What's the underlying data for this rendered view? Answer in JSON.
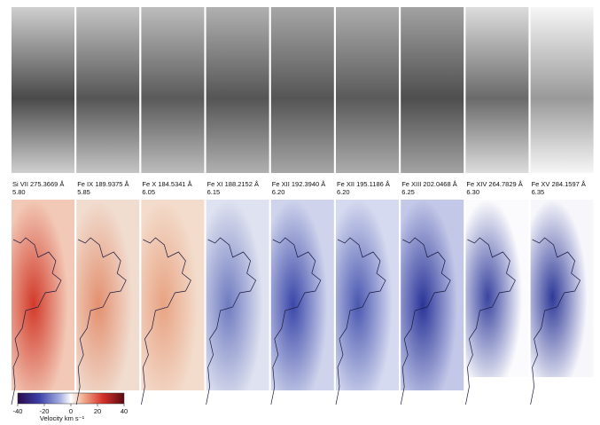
{
  "panels": [
    {
      "line": "Si VII 275.3669 Å",
      "logt": "5.80"
    },
    {
      "line": "Fe IX 189.9375 Å",
      "logt": "5.85"
    },
    {
      "line": "Fe X 184.5341 Å",
      "logt": "6.05"
    },
    {
      "line": "Fe XI 188.2152 Å",
      "logt": "6.15"
    },
    {
      "line": "Fe XII 192.3940 Å",
      "logt": "6.20"
    },
    {
      "line": "Fe XII 195.1186 Å",
      "logt": "6.20"
    },
    {
      "line": "Fe XIII 202.0468 Å",
      "logt": "6.25"
    },
    {
      "line": "Fe XIV 264.7829 Å",
      "logt": "6.30"
    },
    {
      "line": "Fe XV 284.1597 Å",
      "logt": "6.35"
    }
  ],
  "colorbar": {
    "label": "Velocity km s⁻¹",
    "lim": [
      -40,
      40
    ],
    "ticks": [
      -40,
      -20,
      0,
      20,
      40
    ]
  }
}
